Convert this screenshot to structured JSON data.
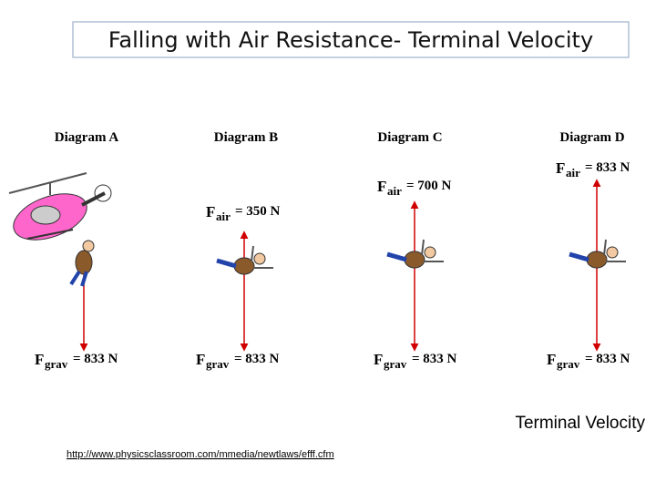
{
  "title": "Falling with Air Resistance- Terminal Velocity",
  "diagrams": [
    {
      "label": "Diagram A",
      "grav": {
        "symbol": "F",
        "subscript": "grav",
        "value": "= 833 N"
      }
    },
    {
      "label": "Diagram B",
      "air": {
        "symbol": "F",
        "subscript": "air",
        "value": "= 350 N"
      },
      "grav": {
        "symbol": "F",
        "subscript": "grav",
        "value": "= 833 N"
      }
    },
    {
      "label": "Diagram C",
      "air": {
        "symbol": "F",
        "subscript": "air",
        "value": "= 700 N"
      },
      "grav": {
        "symbol": "F",
        "subscript": "grav",
        "value": "= 833 N"
      }
    },
    {
      "label": "Diagram D",
      "air": {
        "symbol": "F",
        "subscript": "air",
        "value": "= 833 N"
      },
      "grav": {
        "symbol": "F",
        "subscript": "grav",
        "value": "= 833 N"
      }
    }
  ],
  "caption": "Terminal Velocity",
  "source": "http://www.physicsclassroom.com/mmedia/newtlaws/efff.cfm"
}
